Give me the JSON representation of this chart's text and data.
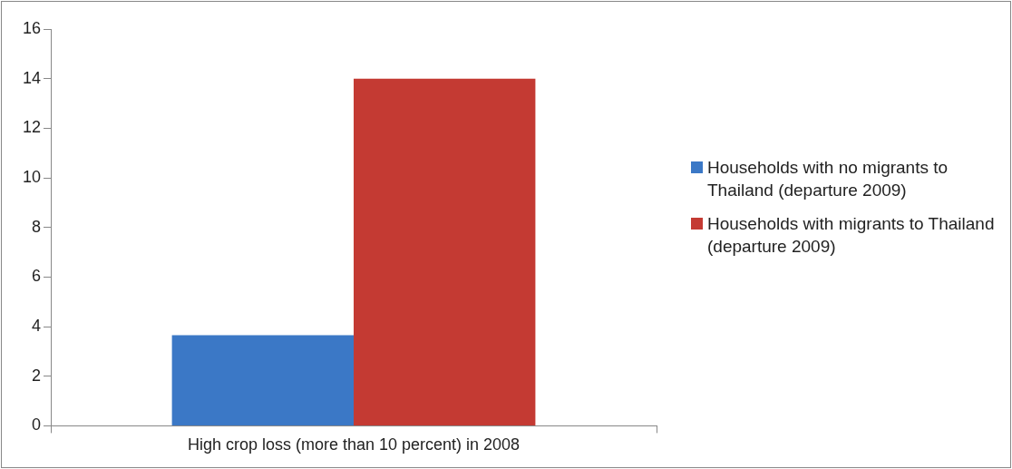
{
  "chart_data": {
    "type": "bar",
    "categories": [
      "High crop loss (more than 10 percent) in 2008"
    ],
    "series": [
      {
        "name": "Households with no migrants to Thailand (departure 2009)",
        "color": "#3b78c6",
        "values": [
          3.65
        ]
      },
      {
        "name": "Households with migrants to Thailand (departure 2009)",
        "color": "#c43a33",
        "values": [
          14
        ]
      }
    ],
    "ylim": [
      0,
      16
    ],
    "yticks": [
      0,
      2,
      4,
      6,
      8,
      10,
      12,
      14,
      16
    ],
    "grid": false,
    "legend": "right"
  }
}
